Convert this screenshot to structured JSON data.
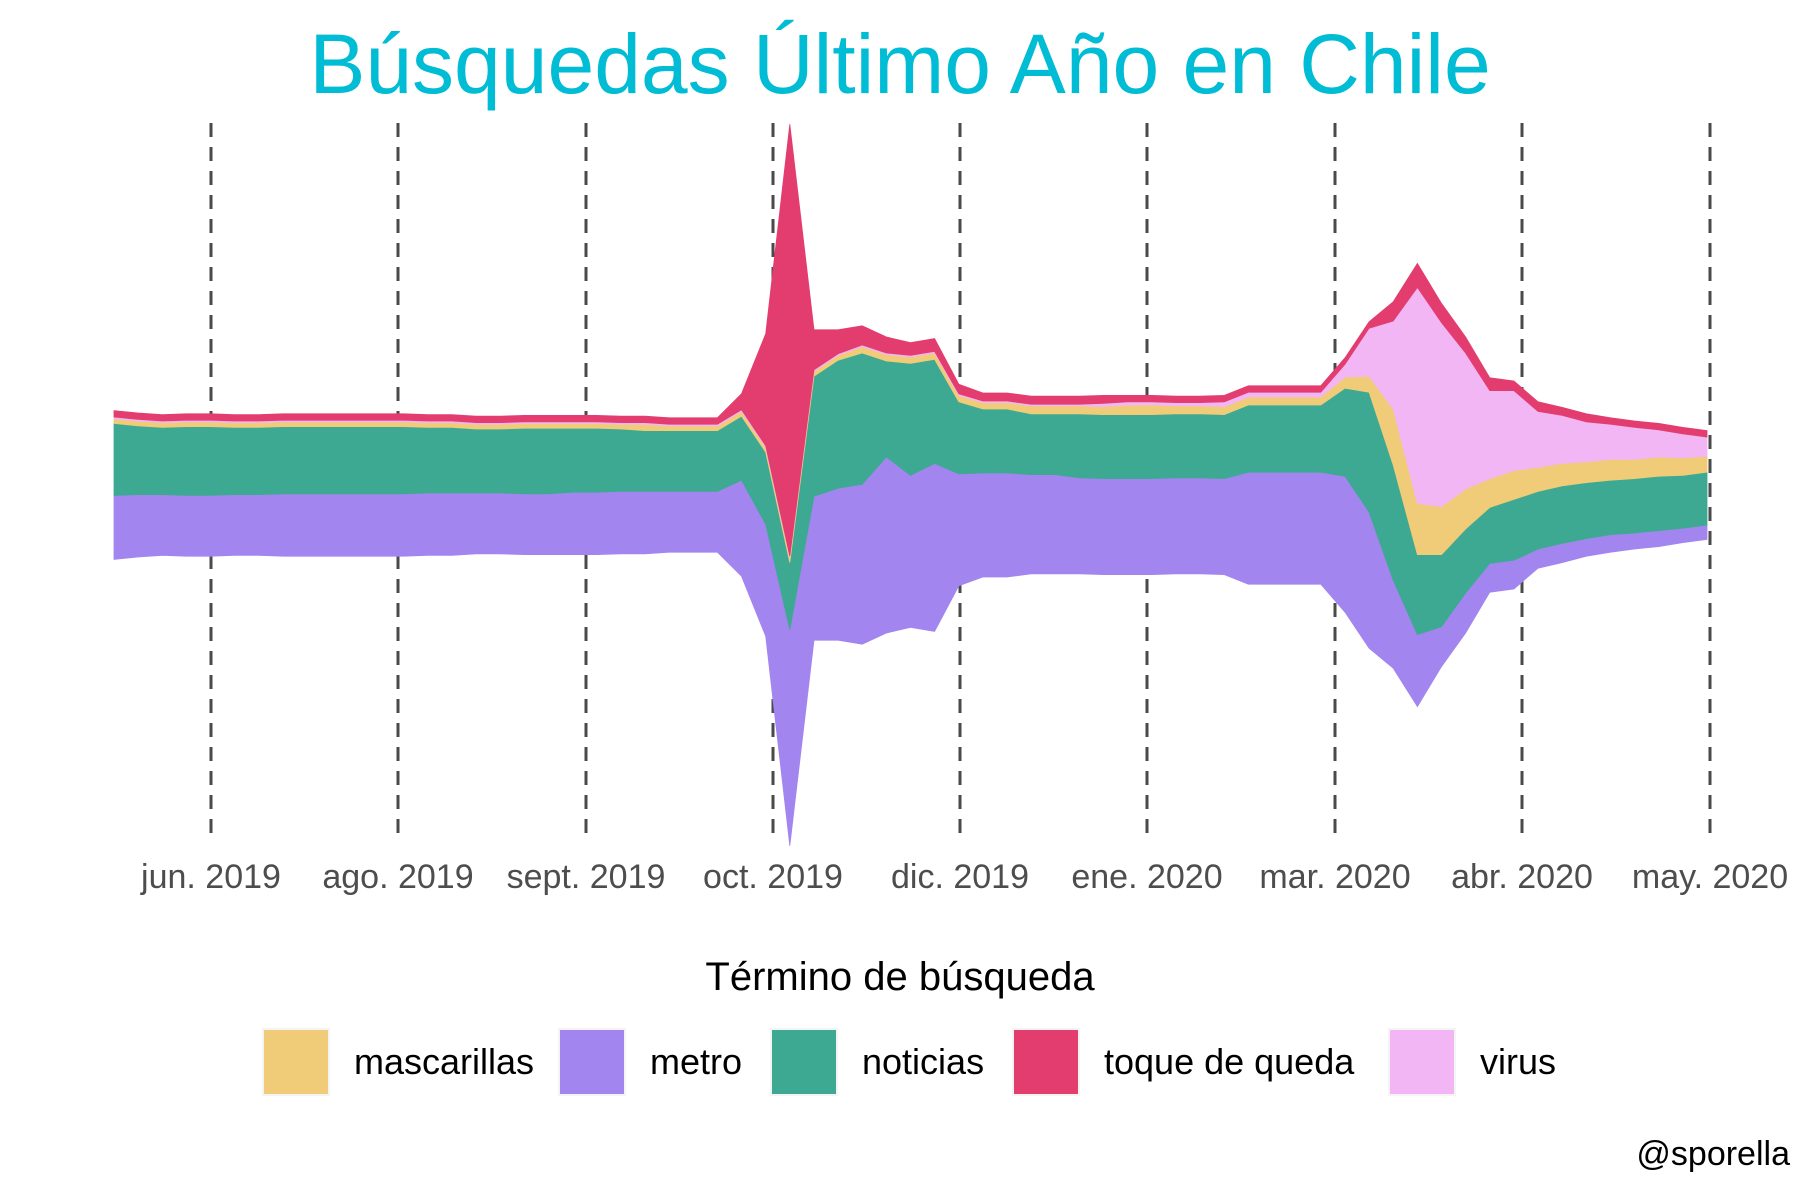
{
  "title": "Búsquedas Último Año en Chile",
  "caption": "@sporella",
  "legend_title": "Término de búsqueda",
  "chart_data": {
    "type": "area",
    "layout": "streamgraph",
    "title": "Búsquedas Último Año en Chile",
    "xlabel": "",
    "ylabel": "",
    "x_tick_labels": [
      "jun. 2019",
      "ago. 2019",
      "sept. 2019",
      "oct. 2019",
      "dic. 2019",
      "ene. 2020",
      "mar. 2020",
      "abr. 2020",
      "may. 2020"
    ],
    "grid": "vertical dashed lines at x ticks",
    "legend_placement": "bottom",
    "series_order_bottom_to_top": [
      "metro",
      "noticias",
      "mascarillas",
      "virus",
      "toque de queda"
    ],
    "series": [
      {
        "name": "mascarillas",
        "color": "#F0CB78",
        "values": [
          3,
          3,
          3,
          3,
          3,
          3,
          3,
          3,
          3,
          3,
          3,
          3,
          3,
          3,
          3,
          3,
          3,
          3,
          3,
          3,
          3,
          3,
          4,
          3,
          3,
          3,
          3,
          3,
          3,
          3,
          3,
          4,
          4,
          4,
          4,
          4,
          4,
          4,
          5,
          5,
          5,
          5,
          6,
          6,
          5,
          5,
          5,
          5,
          5,
          5,
          5,
          7,
          10,
          35,
          32,
          30,
          25,
          18,
          18,
          15,
          14,
          13,
          13,
          12,
          12,
          11,
          10
        ]
      },
      {
        "name": "metro",
        "color": "#A385F0",
        "values": [
          40,
          39,
          38,
          38,
          38,
          38,
          38,
          39,
          39,
          39,
          39,
          39,
          39,
          39,
          39,
          38,
          38,
          38,
          38,
          39,
          39,
          39,
          39,
          38,
          38,
          38,
          60,
          70,
          135,
          90,
          95,
          100,
          110,
          95,
          105,
          70,
          65,
          65,
          62,
          62,
          60,
          60,
          60,
          60,
          60,
          60,
          60,
          70,
          70,
          70,
          70,
          85,
          85,
          55,
          45,
          25,
          25,
          18,
          18,
          12,
          12,
          11,
          11,
          10,
          10,
          9,
          9
        ]
      },
      {
        "name": "noticias",
        "color": "#3EA992",
        "values": [
          45,
          43,
          42,
          43,
          43,
          42,
          42,
          42,
          42,
          42,
          42,
          42,
          42,
          41,
          41,
          40,
          40,
          41,
          41,
          40,
          40,
          39,
          38,
          38,
          38,
          38,
          40,
          45,
          42,
          75,
          80,
          82,
          60,
          70,
          65,
          45,
          40,
          40,
          38,
          38,
          40,
          40,
          40,
          40,
          40,
          40,
          40,
          42,
          42,
          42,
          42,
          55,
          75,
          72,
          50,
          45,
          40,
          35,
          38,
          36,
          36,
          35,
          34,
          34,
          34,
          33,
          33
        ]
      },
      {
        "name": "toque de queda",
        "color": "#E33D70",
        "values": [
          4,
          4,
          4,
          4,
          4,
          4,
          4,
          4,
          4,
          4,
          4,
          4,
          4,
          4,
          4,
          4,
          4,
          4,
          4,
          4,
          4,
          4,
          4,
          4,
          4,
          4,
          10,
          70,
          270,
          25,
          15,
          12,
          10,
          8,
          8,
          6,
          5,
          5,
          5,
          5,
          5,
          5,
          4,
          4,
          4,
          4,
          4,
          4,
          4,
          4,
          4,
          4,
          4,
          12,
          15,
          12,
          10,
          8,
          6,
          6,
          5,
          5,
          4,
          4,
          4,
          4,
          4
        ]
      },
      {
        "name": "virus",
        "color": "#F2B6F5",
        "values": [
          1,
          1,
          1,
          1,
          1,
          1,
          1,
          1,
          1,
          1,
          1,
          1,
          1,
          1,
          1,
          1,
          1,
          1,
          1,
          1,
          1,
          1,
          1,
          1,
          1,
          1,
          1,
          1,
          1,
          1,
          1,
          1,
          1,
          1,
          1,
          1,
          1,
          1,
          1,
          1,
          1,
          2,
          2,
          2,
          2,
          2,
          3,
          3,
          3,
          3,
          3,
          8,
          30,
          55,
          135,
          115,
          85,
          55,
          50,
          35,
          30,
          25,
          22,
          20,
          17,
          15,
          12
        ]
      }
    ]
  }
}
